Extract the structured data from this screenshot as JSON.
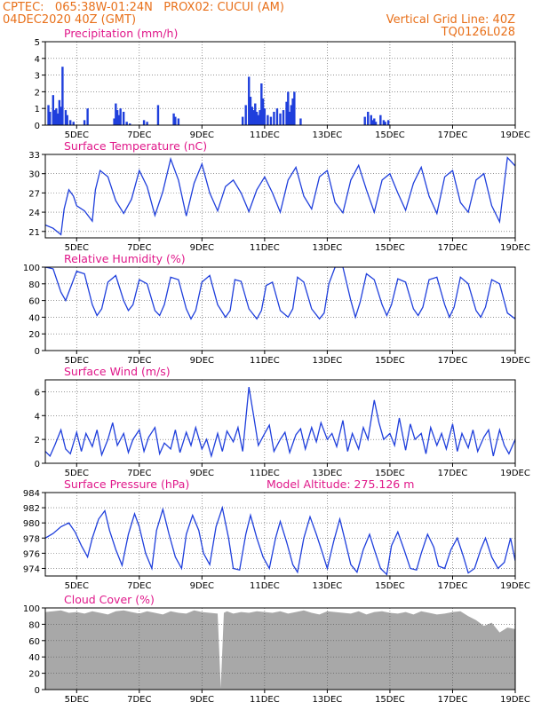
{
  "header": {
    "line1": "CPTEC:   065:38W-01:24N   PROX02: CUCUI (AM)",
    "line2": "04DEC2020 40Z (GMT)",
    "grid_note": "Vertical Grid Line: 40Z",
    "code": "TQ0126L028"
  },
  "colors": {
    "header": "#e8701a",
    "title": "#e0188a",
    "line": "#1f3fdc",
    "cloud": "#a8a8a8",
    "axis": "#000000"
  },
  "x_ticks": [
    "5DEC",
    "7DEC",
    "9DEC",
    "11DEC",
    "13DEC",
    "15DEC",
    "17DEC",
    "19DEC"
  ],
  "chart_data": [
    {
      "type": "bar",
      "title": "Precipitation (mm/h)",
      "ylim": [
        0,
        5
      ],
      "yticks": [
        0,
        1,
        2,
        3,
        4,
        5
      ],
      "x": [
        0.2,
        0.3,
        0.5,
        0.6,
        0.7,
        0.8,
        0.9,
        1.0,
        1.1,
        1.3,
        1.4,
        1.6,
        1.8,
        2.5,
        2.7,
        4.4,
        4.5,
        4.6,
        4.7,
        4.8,
        5.0,
        5.2,
        5.4,
        6.3,
        6.5,
        7.2,
        8.2,
        8.3,
        8.5,
        12.6,
        12.8,
        13.0,
        13.1,
        13.2,
        13.3,
        13.4,
        13.5,
        13.6,
        13.7,
        13.8,
        13.9,
        14.0,
        14.2,
        14.4,
        14.6,
        14.8,
        15.0,
        15.2,
        15.4,
        15.5,
        15.6,
        15.7,
        15.8,
        15.9,
        16.3,
        20.4,
        20.6,
        20.8,
        20.9,
        21.0,
        21.1,
        21.4,
        21.6,
        21.7,
        21.9
      ],
      "values": [
        1.2,
        0.8,
        1.8,
        0.9,
        1.0,
        0.7,
        1.5,
        1.1,
        3.5,
        0.9,
        0.6,
        0.3,
        0.2,
        0.3,
        1.0,
        0.4,
        1.3,
        0.9,
        0.6,
        1.0,
        0.8,
        0.2,
        0.1,
        0.3,
        0.2,
        1.2,
        0.7,
        0.5,
        0.4,
        0.5,
        1.2,
        2.9,
        1.7,
        1.1,
        0.9,
        1.3,
        0.8,
        0.6,
        0.9,
        2.5,
        1.6,
        1.0,
        0.6,
        0.5,
        0.8,
        1.0,
        0.7,
        0.9,
        1.4,
        2.0,
        0.8,
        1.2,
        1.6,
        2.0,
        0.4,
        0.5,
        0.8,
        0.6,
        0.3,
        0.4,
        0.2,
        0.6,
        0.3,
        0.2,
        0.3
      ]
    },
    {
      "type": "line",
      "title": "Surface Temperature (nC)",
      "ylim": [
        20,
        33
      ],
      "yticks": [
        21,
        24,
        27,
        30,
        33
      ],
      "x": [
        0,
        0.5,
        1.0,
        1.2,
        1.5,
        1.8,
        2.0,
        2.5,
        3.0,
        3.2,
        3.5,
        4.0,
        4.5,
        5.0,
        5.5,
        6.0,
        6.5,
        7.0,
        7.5,
        8.0,
        8.5,
        9.0,
        9.5,
        10.0,
        10.5,
        11.0,
        11.5,
        12.0,
        12.5,
        13.0,
        13.5,
        14.0,
        14.5,
        15.0,
        15.5,
        16.0,
        16.5,
        17.0,
        17.5,
        18.0,
        18.5,
        19.0,
        19.5,
        20.0,
        20.5,
        21.0,
        21.5,
        22.0,
        22.5,
        23.0,
        23.5,
        24.0,
        24.5,
        25.0,
        25.5,
        26.0,
        26.5,
        27.0,
        27.5,
        28.0,
        28.5,
        29.0,
        29.5,
        30.0
      ],
      "values": [
        22.0,
        21.5,
        20.5,
        24.5,
        27.5,
        26.5,
        25.0,
        24.2,
        22.6,
        27.5,
        30.5,
        29.5,
        25.8,
        23.8,
        26.0,
        30.5,
        28.0,
        23.5,
        27.2,
        32.3,
        29.0,
        23.4,
        28.5,
        31.5,
        27.0,
        24.2,
        28.0,
        29.0,
        27.0,
        24.1,
        27.5,
        29.5,
        27.0,
        24.0,
        29.0,
        31.0,
        26.5,
        24.5,
        29.5,
        30.5,
        25.5,
        23.9,
        29.0,
        31.3,
        27.5,
        24.0,
        29.0,
        30.0,
        27.0,
        24.3,
        28.5,
        31.0,
        26.5,
        23.8,
        29.5,
        30.5,
        25.5,
        24.0,
        29.0,
        30.0,
        25.0,
        22.5,
        32.5,
        31.2
      ]
    },
    {
      "type": "line",
      "title": "Relative Humidity (%)",
      "ylim": [
        0,
        100
      ],
      "yticks": [
        0,
        20,
        40,
        60,
        80,
        100
      ],
      "x": [
        0,
        0.5,
        1.0,
        1.3,
        1.6,
        2.0,
        2.5,
        3.0,
        3.3,
        3.6,
        4.0,
        4.5,
        5.0,
        5.3,
        5.6,
        6.0,
        6.5,
        7.0,
        7.3,
        7.6,
        8.0,
        8.5,
        9.0,
        9.3,
        9.6,
        10.0,
        10.5,
        11.0,
        11.5,
        11.8,
        12.1,
        12.5,
        13.0,
        13.5,
        13.8,
        14.1,
        14.5,
        15.0,
        15.5,
        15.8,
        16.1,
        16.5,
        17.0,
        17.5,
        17.8,
        18.1,
        18.5,
        19.0,
        19.5,
        19.8,
        20.1,
        20.5,
        21.0,
        21.5,
        21.8,
        22.1,
        22.5,
        23.0,
        23.5,
        23.8,
        24.1,
        24.5,
        25.0,
        25.5,
        25.8,
        26.1,
        26.5,
        27.0,
        27.5,
        27.8,
        28.1,
        28.5,
        29.0,
        29.5,
        30.0
      ],
      "values": [
        100,
        98,
        70,
        60,
        75,
        95,
        92,
        55,
        42,
        50,
        82,
        90,
        60,
        48,
        55,
        85,
        80,
        48,
        42,
        55,
        88,
        85,
        50,
        38,
        48,
        82,
        90,
        55,
        40,
        48,
        85,
        83,
        50,
        38,
        48,
        78,
        82,
        48,
        40,
        50,
        88,
        82,
        50,
        38,
        45,
        80,
        100,
        100,
        60,
        40,
        58,
        92,
        85,
        55,
        42,
        55,
        86,
        82,
        50,
        42,
        52,
        85,
        88,
        55,
        40,
        52,
        88,
        80,
        48,
        40,
        52,
        85,
        80,
        45,
        38
      ]
    },
    {
      "type": "line",
      "title": "Surface Wind (m/s)",
      "ylim": [
        0,
        7
      ],
      "yticks": [
        0,
        2,
        4,
        6
      ],
      "x": [
        0,
        0.3,
        0.6,
        1.0,
        1.3,
        1.6,
        2.0,
        2.3,
        2.6,
        3.0,
        3.3,
        3.6,
        4.0,
        4.3,
        4.6,
        5.0,
        5.3,
        5.6,
        6.0,
        6.3,
        6.6,
        7.0,
        7.3,
        7.6,
        8.0,
        8.3,
        8.6,
        9.0,
        9.3,
        9.6,
        10.0,
        10.3,
        10.6,
        11.0,
        11.3,
        11.6,
        12.0,
        12.3,
        12.6,
        13.0,
        13.3,
        13.6,
        14.0,
        14.3,
        14.6,
        15.0,
        15.3,
        15.6,
        16.0,
        16.3,
        16.6,
        17.0,
        17.3,
        17.6,
        18.0,
        18.3,
        18.6,
        19.0,
        19.3,
        19.6,
        20.0,
        20.3,
        20.6,
        21.0,
        21.3,
        21.6,
        22.0,
        22.3,
        22.6,
        23.0,
        23.3,
        23.6,
        24.0,
        24.3,
        24.6,
        25.0,
        25.3,
        25.6,
        26.0,
        26.3,
        26.6,
        27.0,
        27.3,
        27.6,
        28.0,
        28.3,
        28.6,
        29.0,
        29.3,
        29.6,
        30.0
      ],
      "values": [
        1.0,
        0.6,
        1.5,
        2.8,
        1.2,
        0.8,
        2.6,
        1.0,
        2.5,
        1.4,
        2.8,
        0.7,
        2.0,
        3.4,
        1.5,
        2.5,
        0.9,
        2.0,
        2.8,
        1.0,
        2.2,
        3.0,
        0.8,
        1.7,
        1.2,
        2.8,
        0.9,
        2.6,
        1.5,
        3.0,
        1.2,
        2.0,
        0.6,
        2.5,
        1.0,
        2.7,
        1.8,
        3.0,
        1.0,
        6.4,
        4.0,
        1.5,
        2.5,
        3.2,
        1.0,
        2.0,
        2.6,
        0.9,
        2.4,
        2.9,
        1.2,
        3.0,
        1.8,
        3.4,
        2.0,
        2.5,
        1.4,
        3.6,
        1.0,
        2.5,
        1.2,
        3.0,
        2.0,
        5.3,
        3.4,
        2.0,
        2.5,
        1.5,
        3.8,
        1.1,
        3.3,
        2.0,
        2.5,
        0.8,
        3.0,
        1.5,
        2.5,
        1.2,
        3.3,
        1.0,
        2.5,
        1.3,
        2.8,
        1.0,
        2.2,
        2.8,
        0.6,
        2.8,
        1.5,
        0.8,
        2.0
      ]
    },
    {
      "type": "line",
      "title": "Surface Pressure (hPa)",
      "annotation": "Model Altitude: 275.126 m",
      "ylim": [
        973,
        984
      ],
      "yticks": [
        974,
        976,
        978,
        980,
        982,
        984
      ],
      "x": [
        0,
        0.5,
        1.0,
        1.5,
        1.9,
        2.3,
        2.7,
        3.0,
        3.4,
        3.8,
        4.1,
        4.5,
        4.9,
        5.3,
        5.7,
        6.0,
        6.4,
        6.8,
        7.1,
        7.5,
        7.9,
        8.3,
        8.7,
        9.0,
        9.4,
        9.8,
        10.1,
        10.5,
        10.9,
        11.3,
        11.7,
        12.0,
        12.4,
        12.8,
        13.1,
        13.5,
        13.9,
        14.3,
        14.7,
        15.0,
        15.4,
        15.8,
        16.1,
        16.5,
        16.9,
        17.3,
        17.7,
        18.0,
        18.4,
        18.8,
        19.1,
        19.5,
        19.9,
        20.3,
        20.7,
        21.0,
        21.4,
        21.8,
        22.1,
        22.5,
        22.9,
        23.3,
        23.7,
        24.0,
        24.4,
        24.8,
        25.1,
        25.5,
        25.9,
        26.3,
        26.7,
        27.0,
        27.4,
        27.8,
        28.1,
        28.5,
        28.9,
        29.3,
        29.7,
        30.0
      ],
      "values": [
        978.0,
        978.6,
        979.5,
        980.0,
        978.8,
        977.0,
        975.5,
        978.0,
        980.5,
        981.6,
        979.0,
        976.5,
        974.4,
        978.5,
        981.2,
        979.5,
        976.0,
        974.0,
        979.0,
        981.8,
        978.5,
        975.5,
        974.0,
        978.5,
        981.0,
        979.0,
        976.0,
        974.5,
        979.5,
        982.0,
        978.0,
        974.0,
        973.8,
        978.5,
        981.0,
        978.0,
        975.5,
        974.0,
        978.0,
        980.2,
        977.5,
        974.5,
        973.5,
        978.0,
        980.8,
        978.5,
        976.0,
        974.0,
        977.5,
        980.5,
        978.0,
        974.5,
        973.5,
        976.5,
        978.5,
        976.5,
        974.0,
        973.2,
        977.0,
        978.8,
        976.5,
        974.0,
        973.8,
        976.0,
        978.5,
        976.8,
        974.3,
        974.0,
        976.5,
        978.0,
        975.5,
        973.4,
        974.0,
        976.5,
        978.0,
        975.5,
        974.0,
        974.8,
        978.0,
        975.0
      ]
    },
    {
      "type": "area",
      "title": "Cloud Cover (%)",
      "ylim": [
        0,
        100
      ],
      "yticks": [
        0,
        20,
        40,
        60,
        80,
        100
      ],
      "x": [
        0,
        0.5,
        1.0,
        1.5,
        2.0,
        2.5,
        3.0,
        3.5,
        4.0,
        4.5,
        5.0,
        5.5,
        6.0,
        6.5,
        7.0,
        7.5,
        8.0,
        8.5,
        9.0,
        9.5,
        10.0,
        10.5,
        11.0,
        11.2,
        11.4,
        11.6,
        12.0,
        12.5,
        13.0,
        13.5,
        14.0,
        14.5,
        15.0,
        15.5,
        16.0,
        16.5,
        17.0,
        17.5,
        18.0,
        18.5,
        19.0,
        19.5,
        20.0,
        20.5,
        21.0,
        21.5,
        22.0,
        22.5,
        23.0,
        23.5,
        24.0,
        24.5,
        25.0,
        25.5,
        26.0,
        26.5,
        27.0,
        27.5,
        28.0,
        28.5,
        29.0,
        29.5,
        30.0
      ],
      "values": [
        95,
        96,
        97,
        94,
        95,
        93,
        96,
        94,
        92,
        96,
        97,
        95,
        93,
        96,
        94,
        92,
        96,
        94,
        93,
        97,
        95,
        94,
        93,
        2,
        94,
        96,
        93,
        95,
        94,
        96,
        95,
        94,
        96,
        93,
        95,
        97,
        94,
        92,
        96,
        95,
        94,
        93,
        96,
        92,
        95,
        96,
        94,
        93,
        95,
        92,
        96,
        94,
        92,
        93,
        95,
        96,
        90,
        85,
        78,
        82,
        70,
        76,
        74
      ]
    }
  ]
}
